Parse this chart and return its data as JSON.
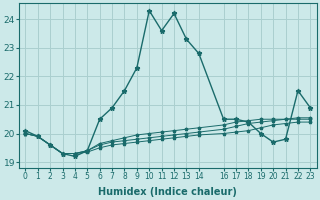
{
  "xlabel": "Humidex (Indice chaleur)",
  "xlim": [
    -0.5,
    23.5
  ],
  "ylim": [
    18.8,
    24.55
  ],
  "yticks": [
    19,
    20,
    21,
    22,
    23,
    24
  ],
  "xtick_positions": [
    0,
    1,
    2,
    3,
    4,
    5,
    6,
    7,
    8,
    9,
    10,
    11,
    12,
    13,
    14,
    16,
    17,
    18,
    19,
    20,
    21,
    22,
    23
  ],
  "xtick_labels": [
    "0",
    "1",
    "2",
    "3",
    "4",
    "5",
    "6",
    "7",
    "8",
    "9",
    "10",
    "11",
    "12",
    "13",
    "14",
    "16",
    "17",
    "18",
    "19",
    "20",
    "21",
    "22",
    "23"
  ],
  "bg_color": "#cce9e9",
  "line_color": "#1a6b6b",
  "grid_color": "#aacfcf",
  "lines": [
    {
      "x": [
        0,
        1,
        2,
        3,
        4,
        5,
        6,
        7,
        8,
        9,
        10,
        11,
        12,
        13,
        14,
        16,
        17,
        18,
        19,
        20,
        21,
        22,
        23
      ],
      "y": [
        20.1,
        19.9,
        19.6,
        19.3,
        19.2,
        19.4,
        20.5,
        20.9,
        21.5,
        22.3,
        24.3,
        23.6,
        24.2,
        23.3,
        22.8,
        20.5,
        20.5,
        20.4,
        20.0,
        19.7,
        19.8,
        21.5,
        20.9
      ]
    },
    {
      "x": [
        0,
        1,
        2,
        3,
        4,
        5,
        6,
        7,
        8,
        9,
        10,
        11,
        12,
        13,
        14,
        16,
        17,
        18,
        19,
        20,
        21,
        22,
        23
      ],
      "y": [
        20.0,
        19.9,
        19.6,
        19.3,
        19.3,
        19.35,
        19.5,
        19.6,
        19.65,
        19.7,
        19.75,
        19.8,
        19.85,
        19.9,
        19.95,
        20.0,
        20.05,
        20.1,
        20.2,
        20.3,
        20.35,
        20.4,
        20.4
      ]
    },
    {
      "x": [
        0,
        1,
        2,
        3,
        4,
        5,
        6,
        7,
        8,
        9,
        10,
        11,
        12,
        13,
        14,
        16,
        17,
        18,
        19,
        20,
        21,
        22,
        23
      ],
      "y": [
        20.0,
        19.9,
        19.6,
        19.3,
        19.3,
        19.4,
        19.6,
        19.7,
        19.75,
        19.8,
        19.85,
        19.9,
        19.95,
        20.0,
        20.05,
        20.15,
        20.25,
        20.35,
        20.4,
        20.45,
        20.5,
        20.5,
        20.5
      ]
    },
    {
      "x": [
        0,
        1,
        2,
        3,
        4,
        5,
        6,
        7,
        8,
        9,
        10,
        11,
        12,
        13,
        14,
        16,
        17,
        18,
        19,
        20,
        21,
        22,
        23
      ],
      "y": [
        20.0,
        19.9,
        19.6,
        19.3,
        19.3,
        19.4,
        19.65,
        19.75,
        19.85,
        19.95,
        20.0,
        20.05,
        20.1,
        20.15,
        20.2,
        20.3,
        20.4,
        20.45,
        20.5,
        20.5,
        20.5,
        20.55,
        20.55
      ]
    }
  ]
}
